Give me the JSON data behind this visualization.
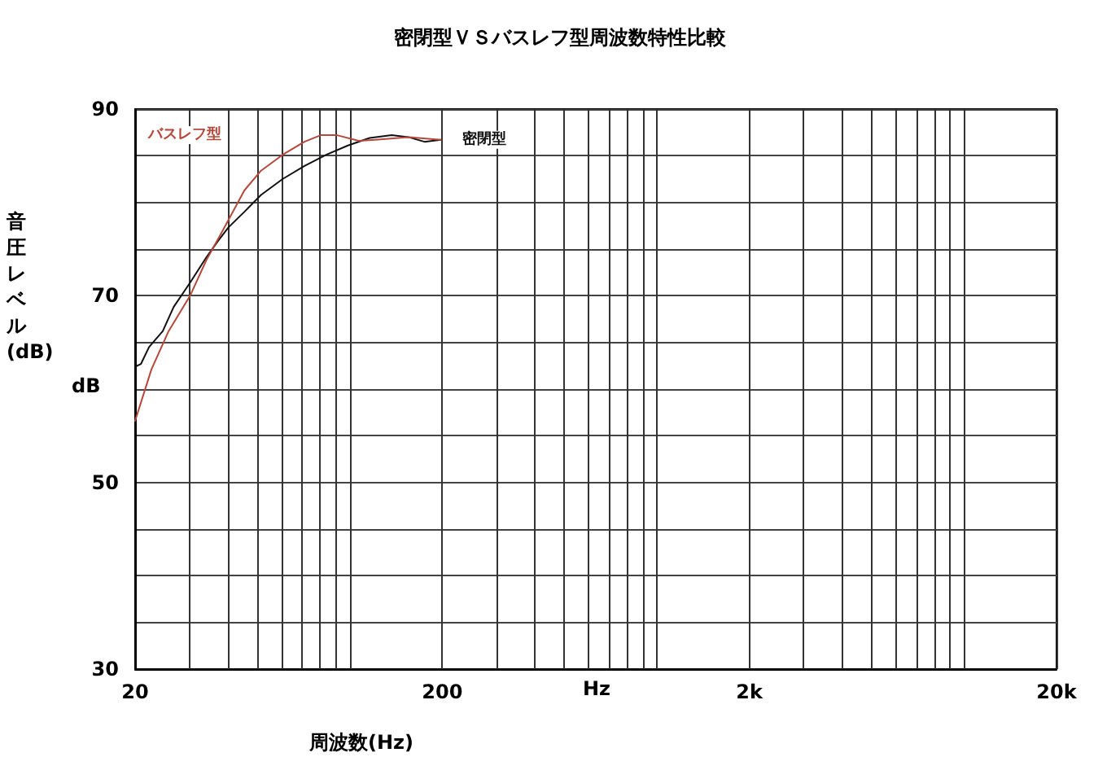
{
  "chart_data": {
    "type": "line",
    "title": "密閉型ＶＳバスレフ型周波数特性比較",
    "xlabel": "周波数(Hz)",
    "ylabel": "音圧レベル(dB)",
    "annotations": [
      "dB",
      "Hz"
    ],
    "log": "x",
    "grid": true,
    "legend": false,
    "marker": "none",
    "line_style": "solid",
    "xlim": [
      20,
      20000
    ],
    "xticks": [
      20,
      {
        "value": 30,
        "label": null
      },
      {
        "value": 40,
        "label": null
      },
      {
        "value": 50,
        "label": null
      },
      {
        "value": 60,
        "label": null
      },
      {
        "value": 70,
        "label": null
      },
      {
        "value": 80,
        "label": null
      },
      {
        "value": 90,
        "label": null
      },
      {
        "value": 100,
        "label": null
      },
      200,
      {
        "value": 300,
        "label": null
      },
      {
        "value": 400,
        "label": null
      },
      {
        "value": 500,
        "label": null
      },
      {
        "value": 600,
        "label": null
      },
      {
        "value": 700,
        "label": null
      },
      {
        "value": 800,
        "label": null
      },
      {
        "value": 900,
        "label": null
      },
      {
        "value": 1000,
        "label": null
      },
      {
        "value": 2000,
        "label": "2k"
      },
      {
        "value": 3000,
        "label": null
      },
      {
        "value": 4000,
        "label": null
      },
      {
        "value": 5000,
        "label": null
      },
      {
        "value": 6000,
        "label": null
      },
      {
        "value": 7000,
        "label": null
      },
      {
        "value": 8000,
        "label": null
      },
      {
        "value": 9000,
        "label": null
      },
      {
        "value": 10000,
        "label": null
      },
      {
        "value": 20000,
        "label": "20k"
      }
    ],
    "ylim": [
      30,
      90
    ],
    "yticks": [
      30,
      {
        "value": 35,
        "label": null
      },
      {
        "value": 40,
        "label": null
      },
      {
        "value": 45,
        "label": null
      },
      50,
      {
        "value": 55,
        "label": null
      },
      {
        "value": 60,
        "label": null
      },
      {
        "value": 65,
        "label": null
      },
      70,
      {
        "value": 75,
        "label": null
      },
      {
        "value": 80,
        "label": null
      },
      {
        "value": 85,
        "label": null
      },
      90
    ],
    "series": [
      {
        "name": "密閉型",
        "color": "#111111",
        "x": [
          20,
          20.9,
          22.2,
          24.6,
          26.7,
          30.2,
          34.1,
          37.1,
          40.2,
          45.4,
          51.4,
          60.4,
          71.2,
          83.8,
          98.6,
          116,
          137,
          155,
          175,
          198
        ],
        "values": [
          62.4,
          62.7,
          64.5,
          66.2,
          68.8,
          71.4,
          74.1,
          75.8,
          77.3,
          79.0,
          80.8,
          82.5,
          83.9,
          85.1,
          86.1,
          86.9,
          87.2,
          87.0,
          86.5,
          86.7
        ]
      },
      {
        "name": "バスレフ型",
        "color": "#b5483a",
        "x": [
          20,
          22.6,
          25.7,
          30.2,
          34.1,
          38.6,
          45.4,
          51.4,
          60.4,
          71.2,
          80.4,
          91,
          107,
          121,
          155,
          198
        ],
        "values": [
          56.6,
          62.1,
          66.2,
          70.0,
          73.8,
          77.0,
          81.3,
          83.4,
          85.1,
          86.5,
          87.2,
          87.2,
          86.6,
          86.7,
          87.0,
          86.7
        ]
      }
    ]
  }
}
